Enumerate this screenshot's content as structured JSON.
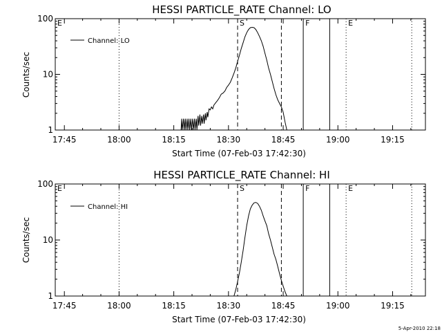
{
  "chart_data": [
    {
      "type": "line",
      "title": "HESSI PARTICLE_RATE Channel: LO",
      "xlabel": "Start Time (07-Feb-03 17:42:30)",
      "ylabel": "Counts/sec",
      "yscale": "log",
      "ylim": [
        1,
        100
      ],
      "xlim": [
        "17:42:30",
        "19:24:00"
      ],
      "x_ticks": [
        "17:45",
        "18:00",
        "18:15",
        "18:30",
        "18:45",
        "19:00",
        "19:15"
      ],
      "y_ticks": [
        "1",
        "10",
        "100"
      ],
      "legend": {
        "entries": [
          "Channel: LO"
        ],
        "placement": "top-left"
      },
      "markers": [
        {
          "label": "E",
          "time": "17:42:30",
          "style": "none"
        },
        {
          "label": "",
          "time": "18:00:00",
          "style": "dotted"
        },
        {
          "label": "S",
          "time": "18:32:30",
          "style": "dashed"
        },
        {
          "label": "",
          "time": "18:44:30",
          "style": "dashed"
        },
        {
          "label": "F",
          "time": "18:50:30",
          "style": "solid"
        },
        {
          "label": "",
          "time": "18:57:45",
          "style": "solid"
        },
        {
          "label": "E",
          "time": "19:02:15",
          "style": "dotted"
        },
        {
          "label": "",
          "time": "19:20:15",
          "style": "dotted"
        }
      ],
      "series": [
        {
          "name": "Channel: LO",
          "x": [
            "18:17:00",
            "18:17:10",
            "18:17:20",
            "18:17:40",
            "18:17:50",
            "18:18:10",
            "18:18:20",
            "18:18:40",
            "18:18:50",
            "18:19:10",
            "18:19:20",
            "18:19:40",
            "18:19:50",
            "18:20:10",
            "18:20:20",
            "18:20:40",
            "18:20:50",
            "18:21:10",
            "18:21:20",
            "18:21:40",
            "18:21:50",
            "18:22:10",
            "18:22:20",
            "18:22:40",
            "18:22:50",
            "18:23:10",
            "18:23:20",
            "18:23:40",
            "18:23:50",
            "18:24:10",
            "18:24:20",
            "18:24:40",
            "18:25:00",
            "18:25:20",
            "18:25:40",
            "18:26:00",
            "18:26:30",
            "18:27:00",
            "18:27:30",
            "18:28:00",
            "18:28:30",
            "18:29:00",
            "18:29:30",
            "18:30:00",
            "18:30:30",
            "18:31:00",
            "18:31:30",
            "18:32:00",
            "18:32:30",
            "18:33:00",
            "18:33:30",
            "18:34:00",
            "18:34:30",
            "18:35:00",
            "18:35:30",
            "18:36:00",
            "18:36:30",
            "18:37:00",
            "18:37:30",
            "18:38:00",
            "18:38:30",
            "18:39:00",
            "18:39:30",
            "18:40:00",
            "18:40:30",
            "18:41:00",
            "18:41:30",
            "18:42:00",
            "18:42:30",
            "18:43:00",
            "18:43:30",
            "18:44:00",
            "18:44:30",
            "18:45:00",
            "18:45:30",
            "18:46:00"
          ],
          "values": [
            1,
            1.6,
            1,
            1.6,
            1,
            1.6,
            1,
            1.6,
            1,
            1.6,
            1,
            1.6,
            1,
            1.6,
            1,
            1.6,
            1,
            1.6,
            1,
            1.8,
            1.2,
            1.9,
            1.2,
            1.8,
            1.3,
            1.9,
            1.3,
            2,
            1.5,
            2.1,
            1.7,
            2.4,
            2.3,
            2.6,
            2.4,
            2.8,
            3.1,
            3.4,
            3.8,
            4.4,
            4.6,
            5,
            5.8,
            6.4,
            7.2,
            8.6,
            10.5,
            13,
            17,
            22,
            29,
            37,
            47,
            56,
            64,
            69,
            70,
            69,
            64,
            56,
            48,
            40,
            32,
            24,
            18,
            13,
            10,
            7.5,
            5.6,
            4.3,
            3.5,
            3.0,
            2.6,
            2.1,
            1.4,
            1
          ]
        }
      ]
    },
    {
      "type": "line",
      "title": "HESSI PARTICLE_RATE Channel: HI",
      "xlabel": "Start Time (07-Feb-03 17:42:30)",
      "ylabel": "Counts/sec",
      "yscale": "log",
      "ylim": [
        1,
        100
      ],
      "xlim": [
        "17:42:30",
        "19:24:00"
      ],
      "x_ticks": [
        "17:45",
        "18:00",
        "18:15",
        "18:30",
        "18:45",
        "19:00",
        "19:15"
      ],
      "y_ticks": [
        "1",
        "10",
        "100"
      ],
      "legend": {
        "entries": [
          "Channel: HI"
        ],
        "placement": "top-left"
      },
      "markers": [
        {
          "label": "E",
          "time": "17:42:30",
          "style": "none"
        },
        {
          "label": "",
          "time": "18:00:00",
          "style": "dotted"
        },
        {
          "label": "S",
          "time": "18:32:30",
          "style": "dashed"
        },
        {
          "label": "",
          "time": "18:44:30",
          "style": "dashed"
        },
        {
          "label": "F",
          "time": "18:50:30",
          "style": "solid"
        },
        {
          "label": "",
          "time": "18:57:45",
          "style": "solid"
        },
        {
          "label": "E",
          "time": "19:02:15",
          "style": "dotted"
        },
        {
          "label": "",
          "time": "19:20:15",
          "style": "dotted"
        }
      ],
      "series": [
        {
          "name": "Channel: HI",
          "x": [
            "18:31:30",
            "18:32:00",
            "18:32:30",
            "18:33:00",
            "18:33:30",
            "18:34:00",
            "18:34:30",
            "18:35:00",
            "18:35:30",
            "18:36:00",
            "18:36:30",
            "18:37:00",
            "18:37:30",
            "18:38:00",
            "18:38:30",
            "18:39:00",
            "18:39:30",
            "18:40:00",
            "18:40:30",
            "18:41:00",
            "18:41:30",
            "18:42:00",
            "18:42:30",
            "18:43:00",
            "18:43:30",
            "18:44:00",
            "18:44:30",
            "18:45:00",
            "18:45:30",
            "18:46:00"
          ],
          "values": [
            1,
            1.3,
            1.8,
            2.6,
            4,
            6.5,
            11,
            18,
            27,
            36,
            42,
            46,
            47,
            45,
            40,
            34,
            27,
            22,
            18,
            13,
            10,
            7.5,
            5.6,
            4.5,
            3.4,
            2.5,
            1.9,
            1.5,
            1.2,
            1
          ]
        }
      ]
    }
  ],
  "footer": {
    "timestamp": "5-Apr-2010 22:18"
  }
}
